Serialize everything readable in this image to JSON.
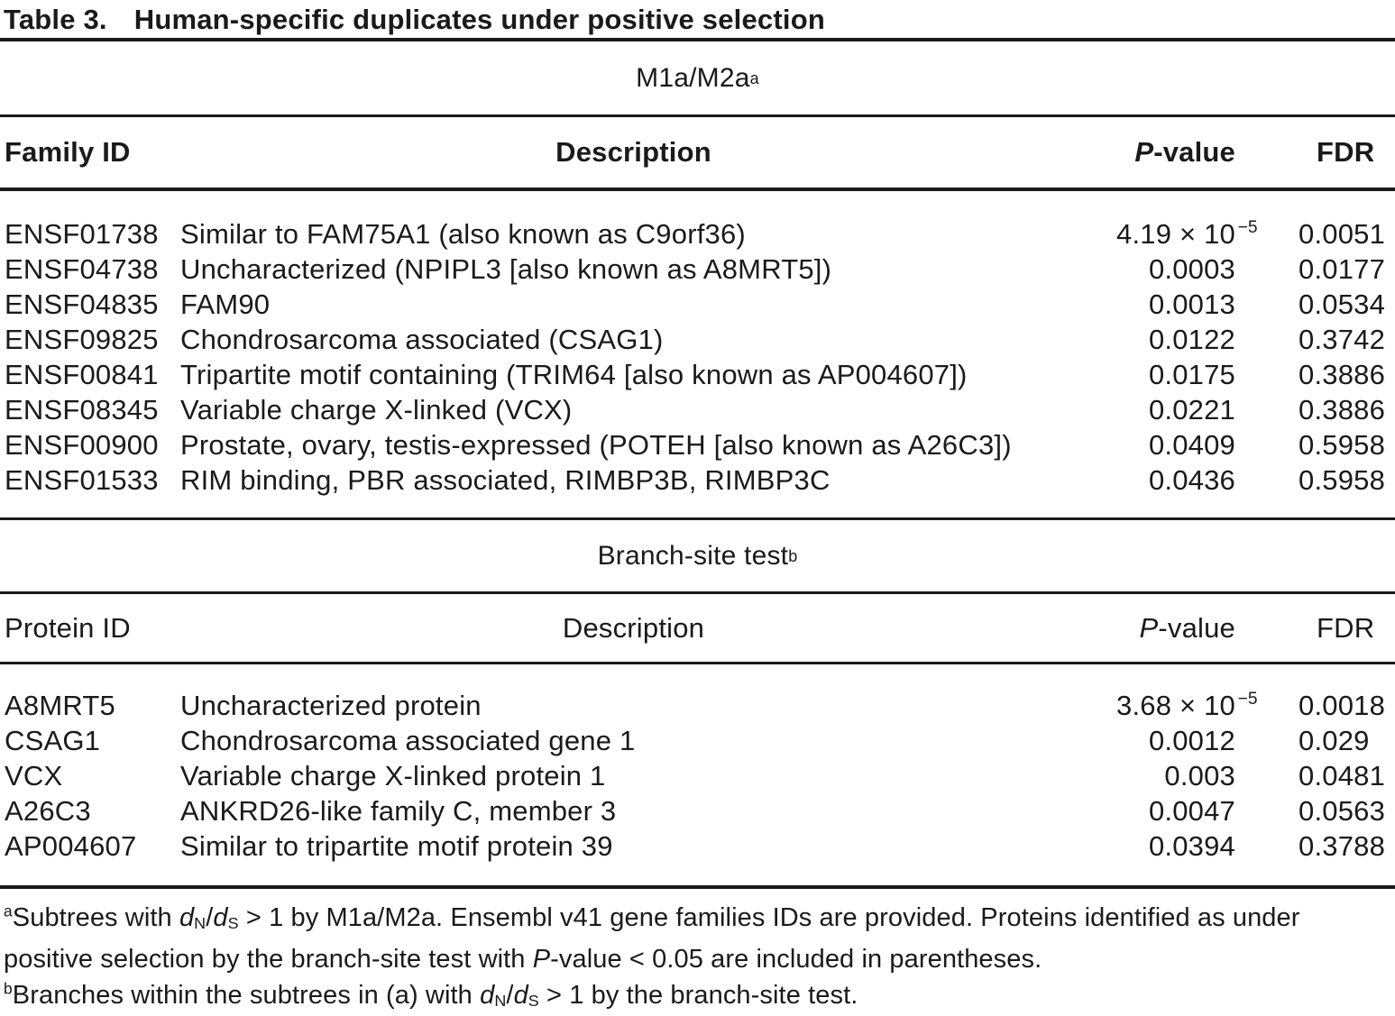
{
  "title": {
    "label": "Table 3.",
    "text": "Human-specific duplicates under positive selection"
  },
  "colors": {
    "text": "#1a1a1a",
    "rule": "#1a1a1a",
    "background": "#ffffff"
  },
  "tables": [
    {
      "section": "M1a/M2a",
      "section_sup": "a",
      "headers": {
        "id": "Family ID",
        "desc": "Description",
        "p_italic": "P",
        "p_rest": "-value",
        "fdr": "FDR"
      },
      "rows": [
        {
          "id": "ENSF01738",
          "desc": "Similar to FAM75A1 (also known as C9orf36)",
          "p": "4.19 × 10",
          "p_sup": "−5",
          "fdr": "0.0051"
        },
        {
          "id": "ENSF04738",
          "desc": "Uncharacterized (NPIPL3 [also known as A8MRT5])",
          "p": "0.0003",
          "fdr": "0.0177"
        },
        {
          "id": "ENSF04835",
          "desc": "FAM90",
          "p": "0.0013",
          "fdr": "0.0534"
        },
        {
          "id": "ENSF09825",
          "desc": "Chondrosarcoma associated (CSAG1)",
          "p": "0.0122",
          "fdr": "0.3742"
        },
        {
          "id": "ENSF00841",
          "desc": "Tripartite motif containing (TRIM64 [also known as AP004607])",
          "p": "0.0175",
          "fdr": "0.3886"
        },
        {
          "id": "ENSF08345",
          "desc": "Variable charge X-linked (VCX)",
          "p": "0.0221",
          "fdr": "0.3886"
        },
        {
          "id": "ENSF00900",
          "desc": "Prostate, ovary, testis-expressed (POTEH [also known as A26C3])",
          "p": "0.0409",
          "fdr": "0.5958"
        },
        {
          "id": "ENSF01533",
          "desc": "RIM binding, PBR associated, RIMBP3B, RIMBP3C",
          "p": "0.0436",
          "fdr": "0.5958"
        }
      ]
    },
    {
      "section": "Branch-site test",
      "section_sup": "b",
      "headers": {
        "id": "Protein ID",
        "desc": "Description",
        "p_italic": "P",
        "p_rest": "-value",
        "fdr": "FDR"
      },
      "rows": [
        {
          "id": "A8MRT5",
          "desc": "Uncharacterized protein",
          "p": "3.68 × 10",
          "p_sup": "−5",
          "fdr": "0.0018"
        },
        {
          "id": "CSAG1",
          "desc": "Chondrosarcoma associated gene 1",
          "p": "0.0012",
          "fdr": "0.029"
        },
        {
          "id": "VCX",
          "desc": "Variable charge X-linked protein 1",
          "p": "0.003",
          "fdr": "0.0481"
        },
        {
          "id": "A26C3",
          "desc": "ANKRD26-like family C, member 3",
          "p": "0.0047",
          "fdr": "0.0563"
        },
        {
          "id": "AP004607",
          "desc": "Similar to tripartite motif protein 39",
          "p": "0.0394",
          "fdr": "0.3788"
        }
      ]
    }
  ],
  "footnotes": [
    {
      "sup": "a",
      "segments": [
        {
          "t": "Subtrees with "
        },
        {
          "t": "d",
          "i": true
        },
        {
          "t": "N",
          "sub": true
        },
        {
          "t": "/"
        },
        {
          "t": "d",
          "i": true
        },
        {
          "t": "S",
          "sub": true
        },
        {
          "t": " > 1 by M1a/M2a. Ensembl v41 gene families IDs are provided. Proteins identified as under positive selection by the branch-site test with "
        },
        {
          "t": "P",
          "i": true
        },
        {
          "t": "-value < 0.05 are included in parentheses."
        }
      ]
    },
    {
      "sup": "b",
      "segments": [
        {
          "t": "Branches within the subtrees in (a) with "
        },
        {
          "t": "d",
          "i": true
        },
        {
          "t": "N",
          "sub": true
        },
        {
          "t": "/"
        },
        {
          "t": "d",
          "i": true
        },
        {
          "t": "S",
          "sub": true
        },
        {
          "t": " > 1 by the branch-site test."
        }
      ]
    }
  ]
}
